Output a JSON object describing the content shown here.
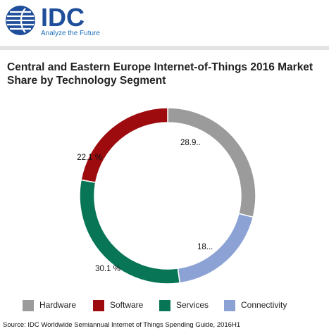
{
  "header": {
    "logo_text": "IDC",
    "tagline": "Analyze the Future"
  },
  "colors": {
    "brand": "#1f4e9a",
    "Hardware": "#9b9b9b",
    "Software": "#9d0b0e",
    "Services": "#087556",
    "Connectivity": "#8ca2d5"
  },
  "chart_data": {
    "type": "pie",
    "style": "donut",
    "title": "Central and Eastern Europe Internet-of-Things 2016 Market Share by Technology Segment",
    "categories": [
      "Hardware",
      "Connectivity",
      "Services",
      "Software"
    ],
    "values": [
      28.9,
      18.9,
      30.1,
      22.1
    ],
    "unit": "%",
    "data_labels": [
      "28.9..",
      "18...",
      "30.1 %",
      "22.1 %"
    ],
    "legend": {
      "position": "bottom",
      "entries": [
        "Hardware",
        "Software",
        "Services",
        "Connectivity"
      ]
    }
  },
  "source": "Source: IDC Worldwide Semiannual Internet of Things Spending Guide, 2016H1"
}
